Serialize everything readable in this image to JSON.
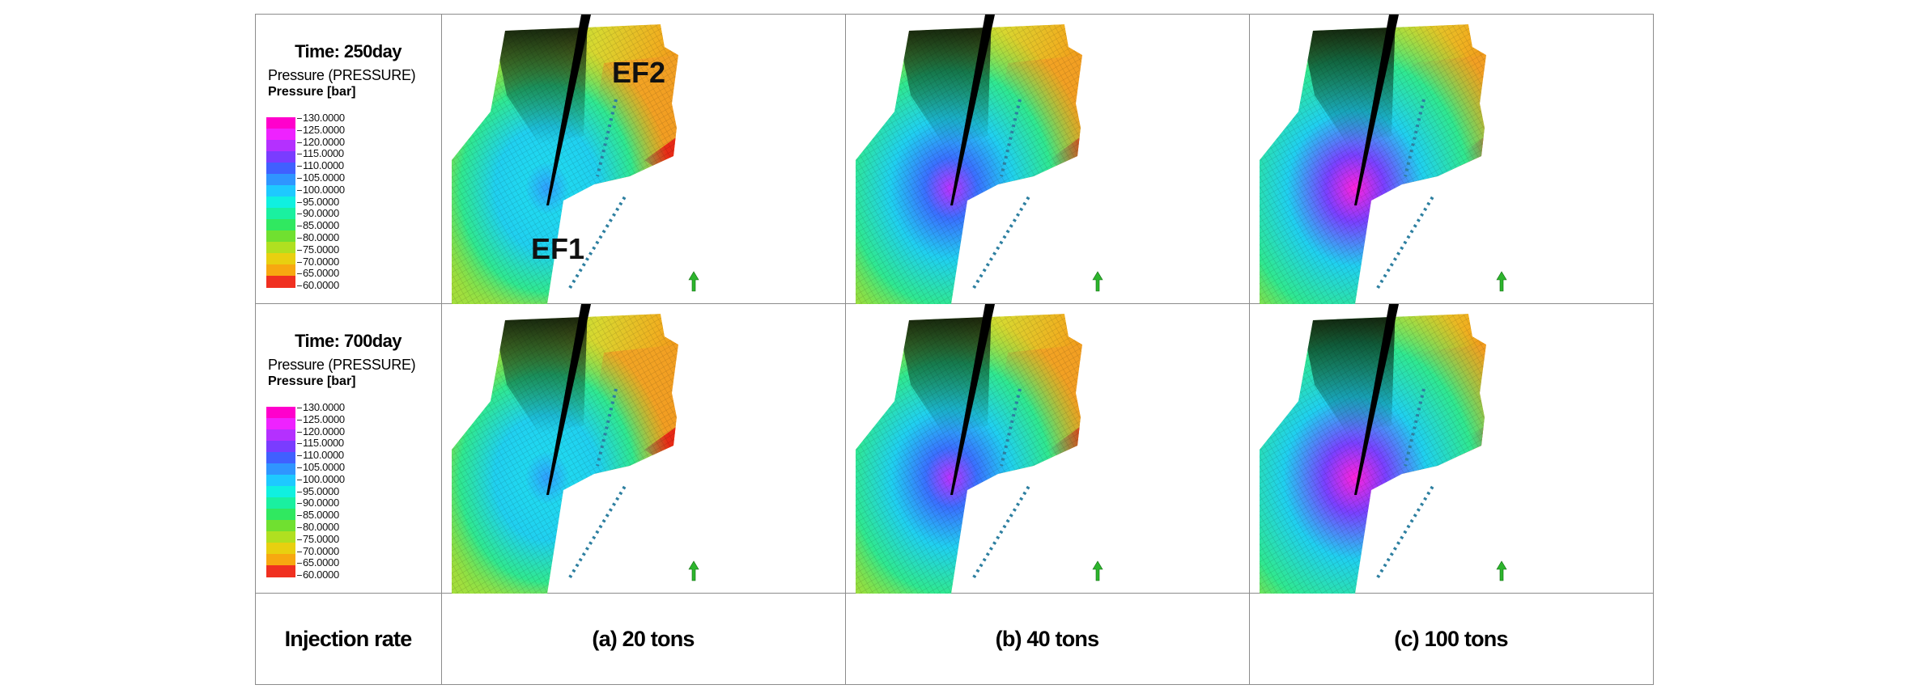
{
  "legends": [
    {
      "time": "Time: 250day",
      "variable": "Pressure (PRESSURE)",
      "unit": "Pressure [bar]"
    },
    {
      "time": "Time: 700day",
      "variable": "Pressure (PRESSURE)",
      "unit": "Pressure [bar]"
    }
  ],
  "legend_ticks": [
    "130.0000",
    "125.0000",
    "120.0000",
    "115.0000",
    "110.0000",
    "105.0000",
    "100.0000",
    "95.0000",
    "90.0000",
    "85.0000",
    "80.0000",
    "75.0000",
    "70.0000",
    "65.0000",
    "60.0000"
  ],
  "colorscale": [
    "#ff00cc",
    "#ee22ff",
    "#b430ff",
    "#7a3cff",
    "#4060ff",
    "#2f95ff",
    "#1ec9ff",
    "#10f0e0",
    "#1af0a0",
    "#30e860",
    "#70e030",
    "#b0e020",
    "#e8d010",
    "#f7a810",
    "#f03020"
  ],
  "annotations": {
    "well1": "EF1",
    "well2": "EF2"
  },
  "maps": [
    {
      "row": 0,
      "col": 0,
      "intensity": 0.18
    },
    {
      "row": 0,
      "col": 1,
      "intensity": 0.55
    },
    {
      "row": 0,
      "col": 2,
      "intensity": 0.85
    },
    {
      "row": 1,
      "col": 0,
      "intensity": 0.2
    },
    {
      "row": 1,
      "col": 1,
      "intensity": 0.5
    },
    {
      "row": 1,
      "col": 2,
      "intensity": 1.0
    }
  ],
  "bottom": {
    "header": "Injection rate",
    "columns": [
      "(a) 20 tons",
      "(b) 40 tons",
      "(c) 100 tons"
    ]
  }
}
